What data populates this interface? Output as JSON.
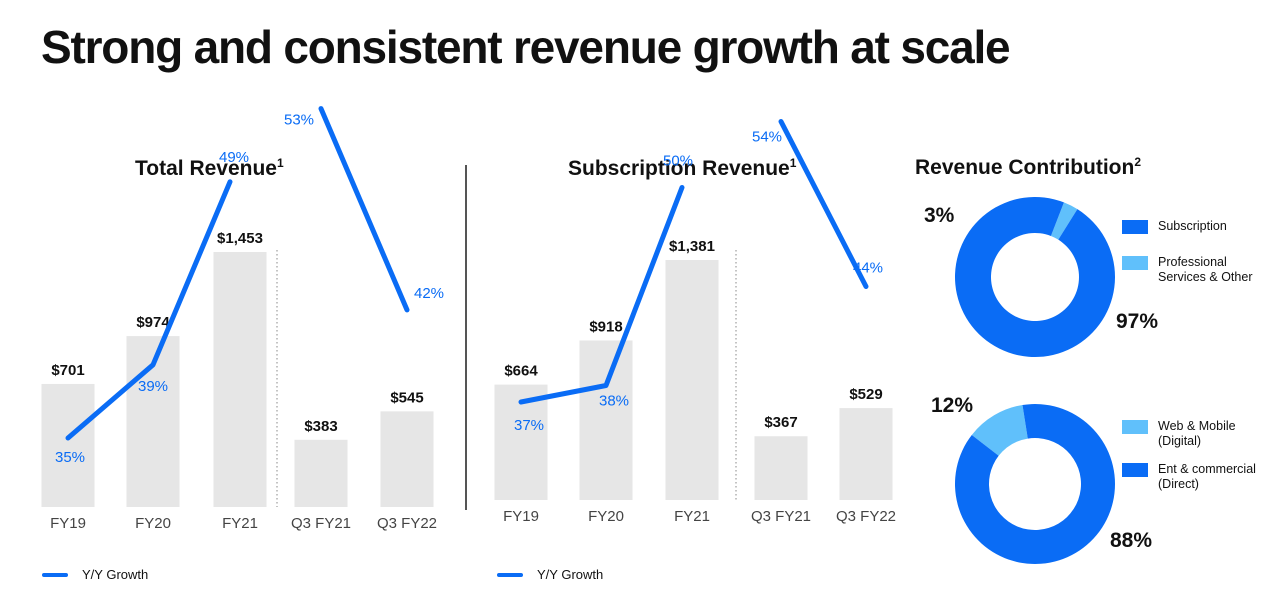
{
  "title": "Strong and consistent revenue growth at scale",
  "colors": {
    "bar": "#e6e6e6",
    "line": "#0a6cf5",
    "blue_dark": "#0a6cf5",
    "blue_light": "#60c0fb",
    "text": "#111111"
  },
  "chart_data": [
    {
      "type": "bar",
      "title": "Total Revenue",
      "title_sup": "1",
      "categories": [
        "FY19",
        "FY20",
        "FY21",
        "Q3 FY21",
        "Q3 FY22"
      ],
      "values": [
        701,
        974,
        1453,
        383,
        545
      ],
      "value_labels": [
        "$701",
        "$974",
        "$1,453",
        "$383",
        "$545"
      ],
      "growth": {
        "name": "Y/Y Growth",
        "annual": [
          35,
          39,
          49
        ],
        "quarterly": [
          53,
          42
        ],
        "labels": [
          "35%",
          "39%",
          "49%",
          "53%",
          "42%"
        ]
      },
      "legend": "Y/Y Growth"
    },
    {
      "type": "bar",
      "title": "Subscription Revenue",
      "title_sup": "1",
      "categories": [
        "FY19",
        "FY20",
        "FY21",
        "Q3 FY21",
        "Q3 FY22"
      ],
      "values": [
        664,
        918,
        1381,
        367,
        529
      ],
      "value_labels": [
        "$664",
        "$918",
        "$1,381",
        "$367",
        "$529"
      ],
      "growth": {
        "name": "Y/Y Growth",
        "annual": [
          37,
          38,
          50
        ],
        "quarterly": [
          54,
          44
        ],
        "labels": [
          "37%",
          "38%",
          "50%",
          "54%",
          "44%"
        ]
      },
      "legend": "Y/Y Growth"
    },
    {
      "type": "pie",
      "title": "Revenue Contribution",
      "title_sup": "2",
      "donuts": [
        {
          "slices": [
            {
              "name": "Subscription",
              "value": 97,
              "label": "97%",
              "color": "#0a6cf5"
            },
            {
              "name": "Professional Services & Other",
              "value": 3,
              "label": "3%",
              "color": "#60c0fb"
            }
          ],
          "legend": [
            "Subscription",
            "Professional Services & Other"
          ]
        },
        {
          "slices": [
            {
              "name": "Ent & commercial (Direct)",
              "value": 88,
              "label": "88%",
              "color": "#0a6cf5"
            },
            {
              "name": "Web & Mobile (Digital)",
              "value": 12,
              "label": "12%",
              "color": "#60c0fb"
            }
          ],
          "legend": [
            "Web & Mobile (Digital)",
            "Ent & commercial (Direct)"
          ]
        }
      ]
    }
  ]
}
